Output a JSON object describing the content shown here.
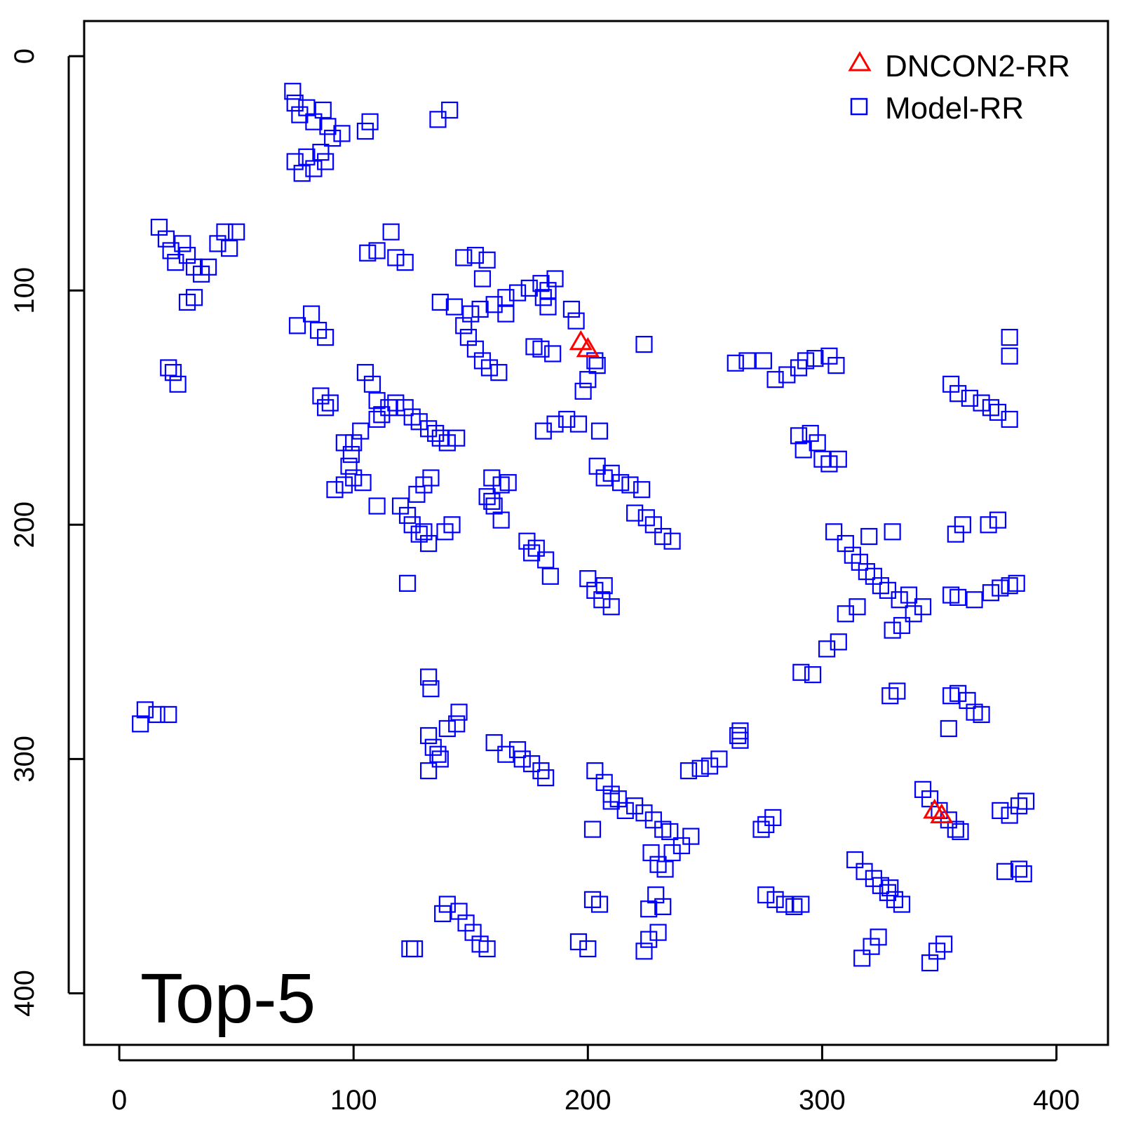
{
  "chart_data": {
    "type": "scatter",
    "title": "",
    "xlabel": "",
    "ylabel": "",
    "xlim": [
      -15,
      422
    ],
    "ylim": [
      -15,
      422
    ],
    "y_inverted": true,
    "grid": false,
    "legend_position": "top-right",
    "overlay_label": "Top-5",
    "x_ticks": [
      0,
      100,
      200,
      300,
      400
    ],
    "y_ticks": [
      0,
      100,
      200,
      300,
      400
    ],
    "series": [
      {
        "name": "DNCON2-RR",
        "marker": "triangle",
        "color": "#ff0000",
        "points": [
          [
            197,
            122
          ],
          [
            200,
            125
          ],
          [
            348,
            322
          ],
          [
            351,
            324
          ]
        ]
      },
      {
        "name": "Model-RR",
        "marker": "square",
        "color": "#0000ff",
        "points": [
          [
            74,
            15
          ],
          [
            75,
            20
          ],
          [
            77,
            25
          ],
          [
            80,
            22
          ],
          [
            83,
            28
          ],
          [
            87,
            23
          ],
          [
            89,
            30
          ],
          [
            91,
            35
          ],
          [
            95,
            33
          ],
          [
            105,
            32
          ],
          [
            107,
            28
          ],
          [
            136,
            27
          ],
          [
            141,
            23
          ],
          [
            75,
            45
          ],
          [
            78,
            50
          ],
          [
            80,
            43
          ],
          [
            83,
            48
          ],
          [
            86,
            41
          ],
          [
            88,
            45
          ],
          [
            17,
            73
          ],
          [
            20,
            78
          ],
          [
            22,
            83
          ],
          [
            24,
            88
          ],
          [
            27,
            80
          ],
          [
            29,
            85
          ],
          [
            32,
            90
          ],
          [
            35,
            93
          ],
          [
            38,
            90
          ],
          [
            42,
            80
          ],
          [
            45,
            75
          ],
          [
            47,
            82
          ],
          [
            50,
            75
          ],
          [
            29,
            105
          ],
          [
            32,
            103
          ],
          [
            23,
            135
          ],
          [
            25,
            140
          ],
          [
            21,
            133
          ],
          [
            76,
            115
          ],
          [
            82,
            110
          ],
          [
            85,
            117
          ],
          [
            88,
            120
          ],
          [
            106,
            84
          ],
          [
            110,
            83
          ],
          [
            116,
            75
          ],
          [
            118,
            86
          ],
          [
            122,
            88
          ],
          [
            137,
            105
          ],
          [
            143,
            107
          ],
          [
            147,
            86
          ],
          [
            152,
            85
          ],
          [
            157,
            87
          ],
          [
            155,
            95
          ],
          [
            147,
            115
          ],
          [
            149,
            120
          ],
          [
            152,
            125
          ],
          [
            155,
            130
          ],
          [
            158,
            133
          ],
          [
            162,
            135
          ],
          [
            150,
            110
          ],
          [
            154,
            108
          ],
          [
            160,
            106
          ],
          [
            165,
            103
          ],
          [
            170,
            101
          ],
          [
            175,
            99
          ],
          [
            180,
            97
          ],
          [
            183,
            100
          ],
          [
            186,
            95
          ],
          [
            181,
            103
          ],
          [
            183,
            107
          ],
          [
            165,
            110
          ],
          [
            193,
            108
          ],
          [
            195,
            113
          ],
          [
            203,
            130
          ],
          [
            204,
            132
          ],
          [
            198,
            143
          ],
          [
            200,
            138
          ],
          [
            185,
            127
          ],
          [
            180,
            125
          ],
          [
            177,
            124
          ],
          [
            224,
            123
          ],
          [
            105,
            135
          ],
          [
            108,
            140
          ],
          [
            110,
            147
          ],
          [
            112,
            153
          ],
          [
            115,
            150
          ],
          [
            118,
            148
          ],
          [
            122,
            150
          ],
          [
            125,
            154
          ],
          [
            128,
            156
          ],
          [
            132,
            159
          ],
          [
            135,
            161
          ],
          [
            137,
            163
          ],
          [
            140,
            165
          ],
          [
            144,
            163
          ],
          [
            110,
            155
          ],
          [
            103,
            160
          ],
          [
            100,
            165
          ],
          [
            99,
            170
          ],
          [
            98,
            175
          ],
          [
            86,
            145
          ],
          [
            88,
            150
          ],
          [
            90,
            148
          ],
          [
            96,
            165
          ],
          [
            96,
            183
          ],
          [
            100,
            180
          ],
          [
            104,
            182
          ],
          [
            92,
            185
          ],
          [
            110,
            192
          ],
          [
            120,
            192
          ],
          [
            123,
            196
          ],
          [
            125,
            200
          ],
          [
            128,
            204
          ],
          [
            130,
            203
          ],
          [
            132,
            208
          ],
          [
            127,
            187
          ],
          [
            130,
            183
          ],
          [
            133,
            180
          ],
          [
            123,
            225
          ],
          [
            139,
            203
          ],
          [
            142,
            200
          ],
          [
            174,
            207
          ],
          [
            176,
            212
          ],
          [
            178,
            210
          ],
          [
            182,
            215
          ],
          [
            184,
            222
          ],
          [
            191,
            155
          ],
          [
            196,
            157
          ],
          [
            186,
            157
          ],
          [
            181,
            160
          ],
          [
            205,
            160
          ],
          [
            160,
            192
          ],
          [
            163,
            198
          ],
          [
            157,
            188
          ],
          [
            163,
            183
          ],
          [
            159,
            180
          ],
          [
            166,
            182
          ],
          [
            159,
            190
          ],
          [
            204,
            175
          ],
          [
            207,
            180
          ],
          [
            210,
            178
          ],
          [
            214,
            182
          ],
          [
            218,
            183
          ],
          [
            223,
            185
          ],
          [
            220,
            195
          ],
          [
            225,
            197
          ],
          [
            228,
            200
          ],
          [
            232,
            205
          ],
          [
            236,
            207
          ],
          [
            200,
            223
          ],
          [
            203,
            228
          ],
          [
            206,
            232
          ],
          [
            210,
            235
          ],
          [
            207,
            226
          ],
          [
            263,
            131
          ],
          [
            268,
            130
          ],
          [
            275,
            130
          ],
          [
            280,
            138
          ],
          [
            285,
            136
          ],
          [
            290,
            133
          ],
          [
            293,
            130
          ],
          [
            297,
            129
          ],
          [
            303,
            128
          ],
          [
            306,
            132
          ],
          [
            290,
            162
          ],
          [
            292,
            168
          ],
          [
            295,
            161
          ],
          [
            298,
            165
          ],
          [
            300,
            172
          ],
          [
            303,
            174
          ],
          [
            307,
            172
          ],
          [
            355,
            140
          ],
          [
            358,
            144
          ],
          [
            363,
            146
          ],
          [
            368,
            148
          ],
          [
            372,
            150
          ],
          [
            375,
            152
          ],
          [
            380,
            155
          ],
          [
            380,
            120
          ],
          [
            380,
            128
          ],
          [
            305,
            203
          ],
          [
            310,
            208
          ],
          [
            313,
            213
          ],
          [
            316,
            216
          ],
          [
            319,
            220
          ],
          [
            322,
            222
          ],
          [
            325,
            226
          ],
          [
            328,
            228
          ],
          [
            333,
            232
          ],
          [
            337,
            230
          ],
          [
            339,
            238
          ],
          [
            343,
            235
          ],
          [
            330,
            203
          ],
          [
            357,
            204
          ],
          [
            360,
            200
          ],
          [
            371,
            200
          ],
          [
            375,
            198
          ],
          [
            320,
            205
          ],
          [
            310,
            238
          ],
          [
            315,
            235
          ],
          [
            307,
            250
          ],
          [
            302,
            253
          ],
          [
            296,
            264
          ],
          [
            291,
            263
          ],
          [
            334,
            243
          ],
          [
            330,
            245
          ],
          [
            355,
            230
          ],
          [
            358,
            231
          ],
          [
            365,
            232
          ],
          [
            372,
            229
          ],
          [
            376,
            227
          ],
          [
            380,
            226
          ],
          [
            383,
            225
          ],
          [
            329,
            273
          ],
          [
            332,
            271
          ],
          [
            355,
            273
          ],
          [
            358,
            272
          ],
          [
            362,
            275
          ],
          [
            365,
            280
          ],
          [
            368,
            281
          ],
          [
            354,
            287
          ],
          [
            11,
            279
          ],
          [
            16,
            281
          ],
          [
            21,
            281
          ],
          [
            9,
            285
          ],
          [
            265,
            288
          ],
          [
            265,
            292
          ],
          [
            132,
            265
          ],
          [
            133,
            270
          ],
          [
            132,
            290
          ],
          [
            134,
            295
          ],
          [
            136,
            298
          ],
          [
            137,
            300
          ],
          [
            140,
            287
          ],
          [
            144,
            285
          ],
          [
            145,
            280
          ],
          [
            132,
            305
          ],
          [
            160,
            293
          ],
          [
            165,
            298
          ],
          [
            170,
            296
          ],
          [
            172,
            300
          ],
          [
            176,
            302
          ],
          [
            180,
            305
          ],
          [
            182,
            308
          ],
          [
            203,
            305
          ],
          [
            207,
            310
          ],
          [
            210,
            315
          ],
          [
            213,
            317
          ],
          [
            216,
            322
          ],
          [
            220,
            320
          ],
          [
            224,
            323
          ],
          [
            228,
            326
          ],
          [
            232,
            330
          ],
          [
            235,
            331
          ],
          [
            243,
            305
          ],
          [
            248,
            304
          ],
          [
            252,
            303
          ],
          [
            256,
            300
          ],
          [
            264,
            290
          ],
          [
            227,
            340
          ],
          [
            230,
            345
          ],
          [
            233,
            347
          ],
          [
            236,
            340
          ],
          [
            240,
            337
          ],
          [
            244,
            333
          ],
          [
            274,
            330
          ],
          [
            276,
            328
          ],
          [
            279,
            325
          ],
          [
            202,
            330
          ],
          [
            210,
            318
          ],
          [
            343,
            313
          ],
          [
            346,
            317
          ],
          [
            350,
            322
          ],
          [
            354,
            326
          ],
          [
            357,
            330
          ],
          [
            359,
            331
          ],
          [
            376,
            322
          ],
          [
            380,
            324
          ],
          [
            384,
            320
          ],
          [
            387,
            318
          ],
          [
            314,
            343
          ],
          [
            318,
            348
          ],
          [
            322,
            351
          ],
          [
            325,
            354
          ],
          [
            328,
            357
          ],
          [
            331,
            360
          ],
          [
            334,
            362
          ],
          [
            329,
            355
          ],
          [
            276,
            358
          ],
          [
            280,
            360
          ],
          [
            284,
            362
          ],
          [
            288,
            363
          ],
          [
            291,
            362
          ],
          [
            202,
            360
          ],
          [
            205,
            362
          ],
          [
            229,
            358
          ],
          [
            232,
            363
          ],
          [
            226,
            364
          ],
          [
            140,
            362
          ],
          [
            145,
            365
          ],
          [
            148,
            370
          ],
          [
            151,
            374
          ],
          [
            154,
            379
          ],
          [
            157,
            381
          ],
          [
            138,
            366
          ],
          [
            124,
            381
          ],
          [
            126,
            381
          ],
          [
            200,
            381
          ],
          [
            196,
            378
          ],
          [
            230,
            374
          ],
          [
            226,
            377
          ],
          [
            224,
            382
          ],
          [
            317,
            385
          ],
          [
            321,
            380
          ],
          [
            324,
            376
          ],
          [
            346,
            387
          ],
          [
            349,
            382
          ],
          [
            352,
            379
          ],
          [
            378,
            348
          ],
          [
            384,
            347
          ],
          [
            386,
            349
          ]
        ]
      }
    ]
  }
}
